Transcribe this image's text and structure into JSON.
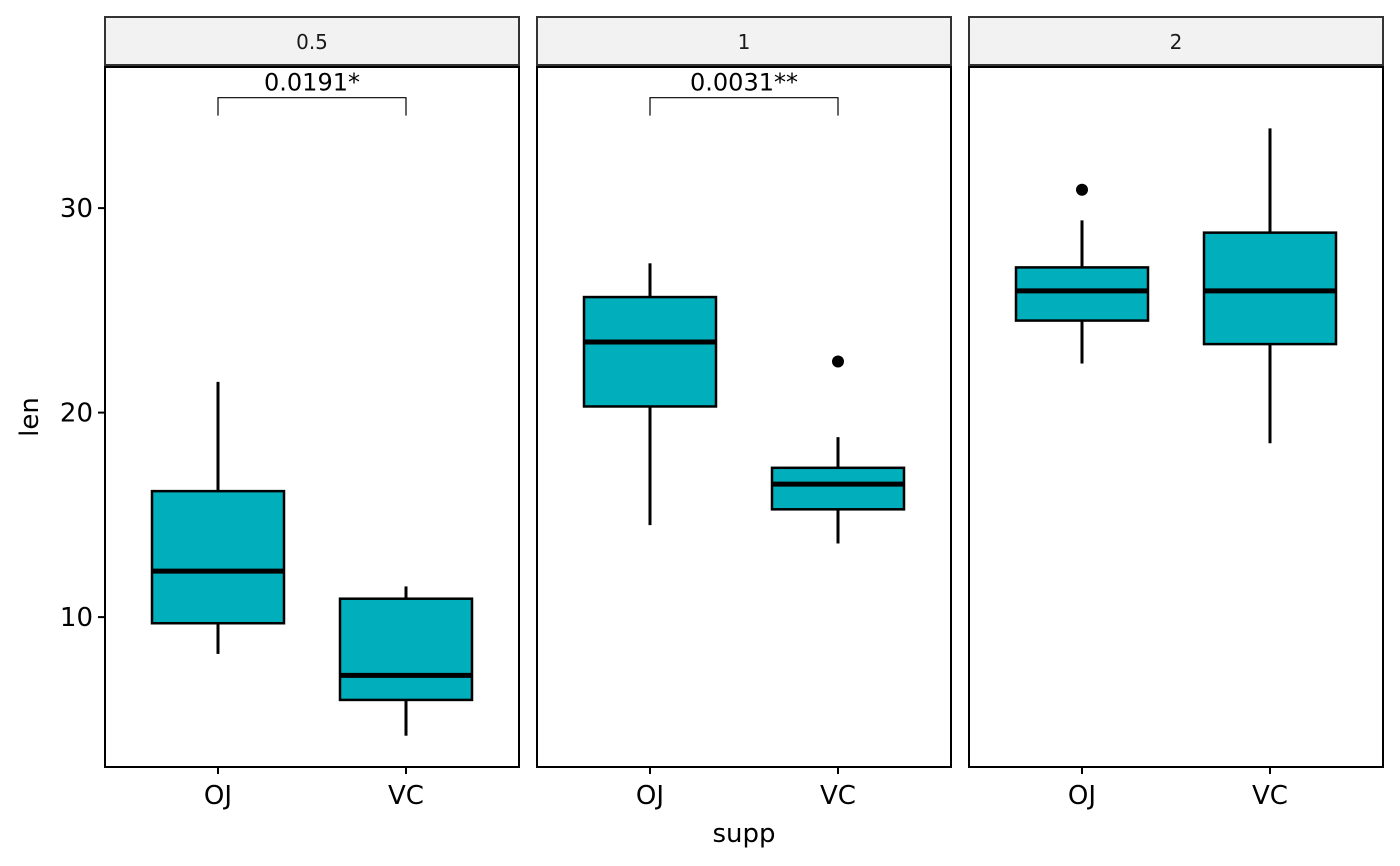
{
  "chart_data": {
    "type": "boxplot",
    "title": "",
    "xlabel": "supp",
    "ylabel": "len",
    "ylim": [
      2.67,
      36.9
    ],
    "yticks": [
      10,
      20,
      30
    ],
    "ytick_labels": [
      "10",
      "20",
      "30"
    ],
    "categories": [
      "OJ",
      "VC"
    ],
    "fill_color": "#00AFBB",
    "facets": [
      {
        "label": "0.5",
        "pvalue_label": "0.0191*",
        "bracket_value": 35.4,
        "boxes": [
          {
            "category": "OJ",
            "whisker_low": 8.2,
            "q1": 9.7,
            "median": 12.25,
            "q3": 16.16,
            "whisker_high": 21.5,
            "outliers": []
          },
          {
            "category": "VC",
            "whisker_low": 4.2,
            "q1": 5.95,
            "median": 7.15,
            "q3": 10.9,
            "whisker_high": 11.5,
            "outliers": []
          }
        ]
      },
      {
        "label": "1",
        "pvalue_label": "0.0031**",
        "bracket_value": 35.4,
        "boxes": [
          {
            "category": "OJ",
            "whisker_low": 14.5,
            "q1": 20.3,
            "median": 23.45,
            "q3": 25.65,
            "whisker_high": 27.3,
            "outliers": []
          },
          {
            "category": "VC",
            "whisker_low": 13.6,
            "q1": 15.27,
            "median": 16.5,
            "q3": 17.3,
            "whisker_high": 18.8,
            "outliers": [
              22.5
            ]
          }
        ]
      },
      {
        "label": "2",
        "pvalue_label": null,
        "bracket_value": null,
        "boxes": [
          {
            "category": "OJ",
            "whisker_low": 22.4,
            "q1": 24.5,
            "median": 25.95,
            "q3": 27.1,
            "whisker_high": 29.4,
            "outliers": [
              30.9
            ]
          },
          {
            "category": "VC",
            "whisker_low": 18.5,
            "q1": 23.35,
            "median": 25.95,
            "q3": 28.8,
            "whisker_high": 33.9,
            "outliers": []
          }
        ]
      }
    ]
  }
}
